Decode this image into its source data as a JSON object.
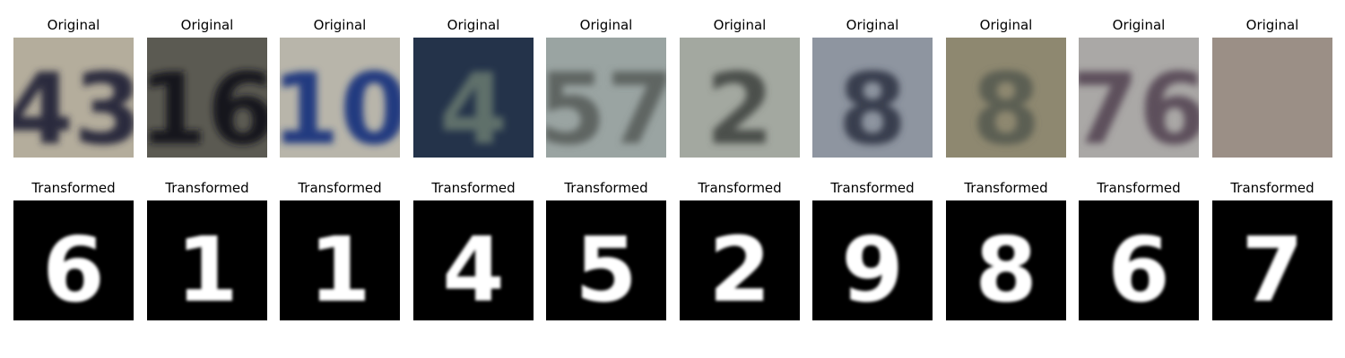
{
  "panels": [
    {
      "original_label": "Original",
      "transformed_label": "Transformed",
      "original_digit_text": "43",
      "transformed_digit": "6",
      "bg": "#b4ad9c",
      "fg": "#2c2a3c"
    },
    {
      "original_label": "Original",
      "transformed_label": "Transformed",
      "original_digit_text": "16",
      "transformed_digit": "1",
      "bg": "#5b5a52",
      "fg": "#17181e"
    },
    {
      "original_label": "Original",
      "transformed_label": "Transformed",
      "original_digit_text": "10",
      "transformed_digit": "1",
      "bg": "#b8b5aa",
      "fg": "#243b80"
    },
    {
      "original_label": "Original",
      "transformed_label": "Transformed",
      "original_digit_text": "4",
      "transformed_digit": "4",
      "bg": "#24334a",
      "fg": "#5f6f6a"
    },
    {
      "original_label": "Original",
      "transformed_label": "Transformed",
      "original_digit_text": "57",
      "transformed_digit": "5",
      "bg": "#9aa4a2",
      "fg": "#5e6562"
    },
    {
      "original_label": "Original",
      "transformed_label": "Transformed",
      "original_digit_text": "2",
      "transformed_digit": "2",
      "bg": "#a3a8a0",
      "fg": "#4c4f4c"
    },
    {
      "original_label": "Original",
      "transformed_label": "Transformed",
      "original_digit_text": "8",
      "transformed_digit": "9",
      "bg": "#8e95a0",
      "fg": "#383e4e"
    },
    {
      "original_label": "Original",
      "transformed_label": "Transformed",
      "original_digit_text": "8",
      "transformed_digit": "8",
      "bg": "#8e8870",
      "fg": "#5b5e52"
    },
    {
      "original_label": "Original",
      "transformed_label": "Transformed",
      "original_digit_text": "76",
      "transformed_digit": "6",
      "bg": "#aaa8a6",
      "fg": "#5d4f5c"
    },
    {
      "original_label": "Original",
      "transformed_label": "Transformed",
      "original_digit_text": "",
      "transformed_digit": "7",
      "bg": "#9b8f86",
      "fg": "#8a7f78"
    }
  ]
}
